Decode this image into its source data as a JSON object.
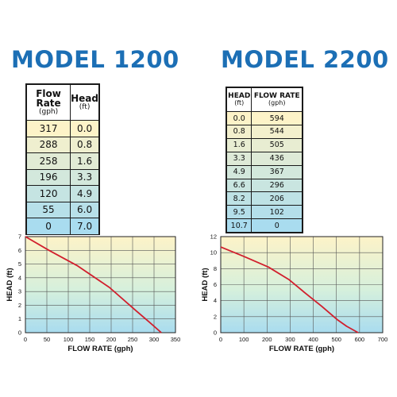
{
  "model_1200": {
    "title": "MODEL 1200",
    "table": {
      "col1_header": "Flow Rate",
      "col1_unit": "(gph)",
      "col2_header": "Head",
      "col2_unit": "(ft)",
      "rows": [
        [
          "317",
          "0.0"
        ],
        [
          "288",
          "0.8"
        ],
        [
          "258",
          "1.6"
        ],
        [
          "196",
          "3.3"
        ],
        [
          "120",
          "4.9"
        ],
        [
          "55",
          "6.0"
        ],
        [
          "0",
          "7.0"
        ]
      ]
    }
  },
  "model_2200": {
    "title": "MODEL 2200",
    "table": {
      "col1_header": "HEAD",
      "col1_unit": "(ft)",
      "col2_header": "FLOW RATE",
      "col2_unit": "(gph)",
      "rows": [
        [
          "0.0",
          "594"
        ],
        [
          "0.8",
          "544"
        ],
        [
          "1.6",
          "505"
        ],
        [
          "3.3",
          "436"
        ],
        [
          "4.9",
          "367"
        ],
        [
          "6.6",
          "296"
        ],
        [
          "8.2",
          "206"
        ],
        [
          "9.5",
          "102"
        ],
        [
          "10.7",
          "0"
        ]
      ]
    }
  },
  "colors": {
    "title_blue": "#1c6fb5",
    "curve_red": "#d11f2d",
    "gradient_top": "#fdf3c8",
    "gradient_mid": "#d6f0dc",
    "gradient_bottom": "#a9dcef"
  },
  "chart_data": [
    {
      "type": "line",
      "title": "",
      "xlabel": "FLOW RATE (gph)",
      "ylabel": "HEAD (ft)",
      "xlim": [
        0,
        350
      ],
      "ylim": [
        0,
        7
      ],
      "x_ticks": [
        0,
        50,
        100,
        150,
        200,
        250,
        300,
        350
      ],
      "y_ticks": [
        0,
        1,
        2,
        3,
        4,
        5,
        6,
        7
      ],
      "grid": true,
      "series": [
        {
          "x": [
            0,
            55,
            120,
            196,
            258,
            288,
            317
          ],
          "y": [
            7.0,
            6.0,
            4.9,
            3.3,
            1.6,
            0.8,
            0.0
          ]
        }
      ]
    },
    {
      "type": "line",
      "title": "",
      "xlabel": "FLOW RATE (gph)",
      "ylabel": "HEAD (ft)",
      "xlim": [
        0,
        700
      ],
      "ylim": [
        0,
        12
      ],
      "x_ticks": [
        0,
        100,
        200,
        300,
        400,
        500,
        600,
        700
      ],
      "y_ticks": [
        0,
        2,
        4,
        6,
        8,
        10,
        12
      ],
      "grid": true,
      "series": [
        {
          "x": [
            0,
            102,
            206,
            296,
            367,
            436,
            505,
            544,
            594
          ],
          "y": [
            10.7,
            9.5,
            8.2,
            6.6,
            4.9,
            3.3,
            1.6,
            0.8,
            0.0
          ]
        }
      ]
    }
  ]
}
